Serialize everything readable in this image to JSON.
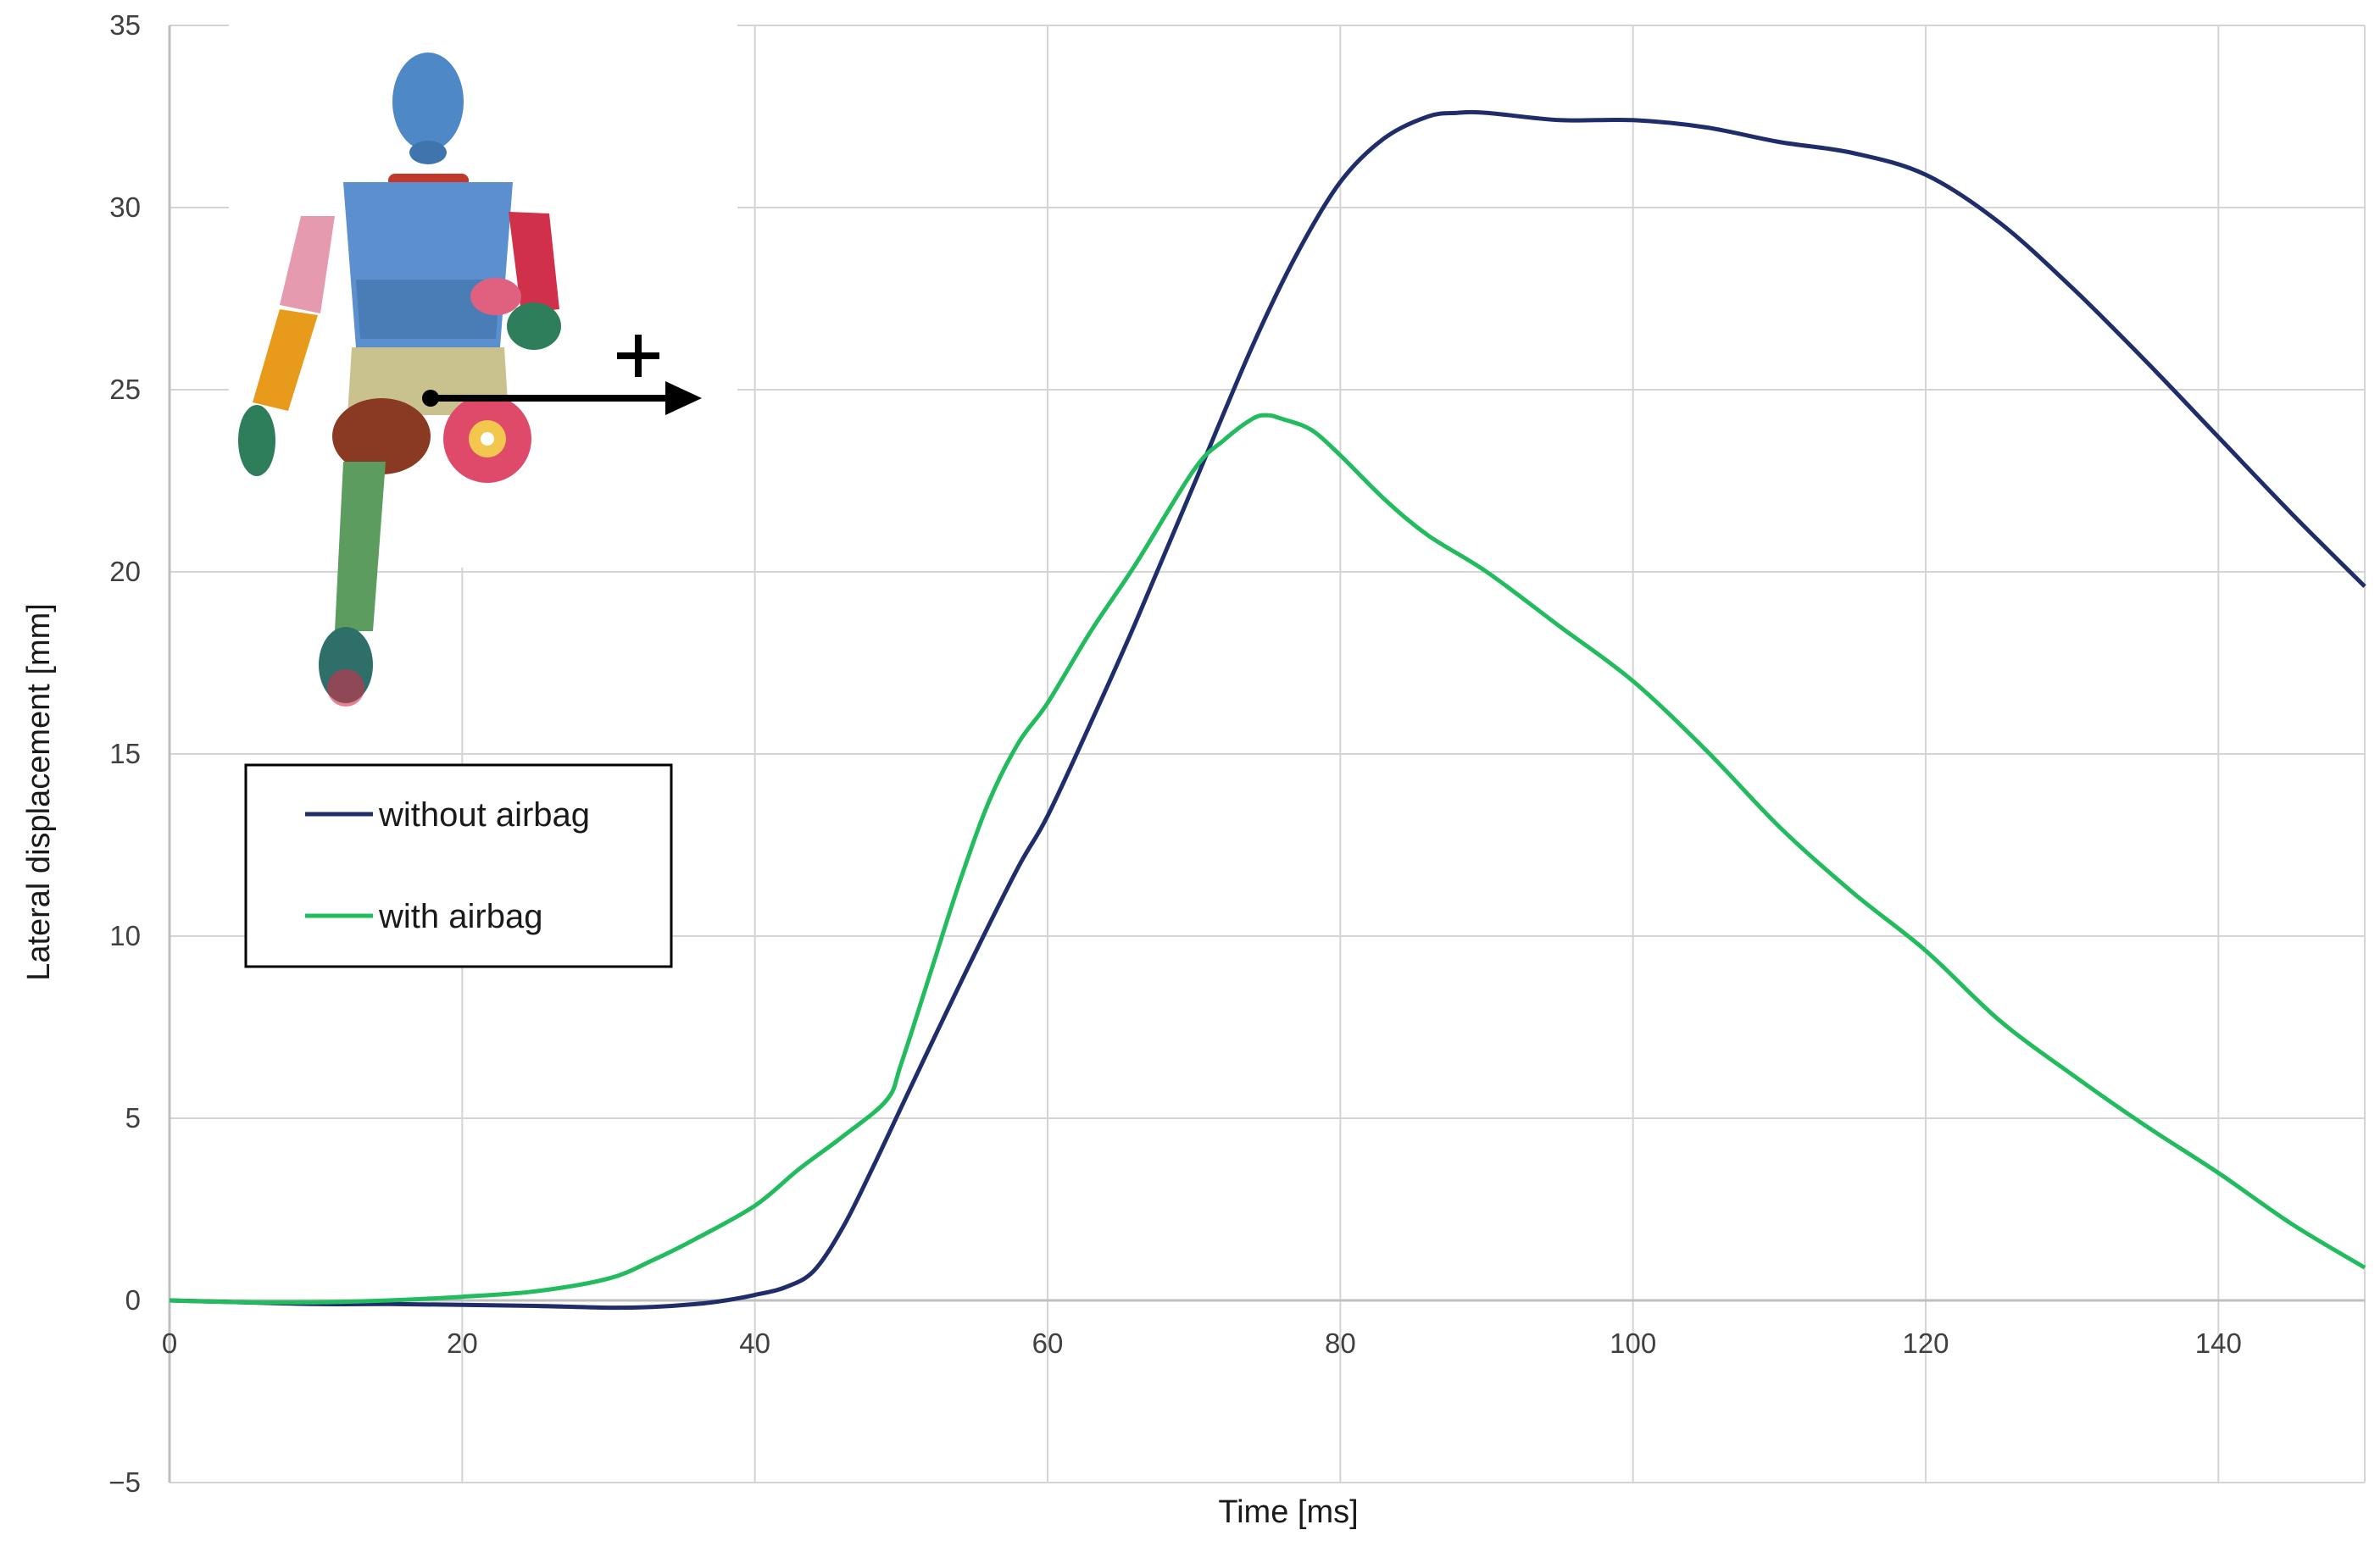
{
  "chart_data": {
    "type": "line",
    "xlabel": "Time [ms]",
    "ylabel": "Lateral displacement  [mm]",
    "xlim": [
      0,
      150
    ],
    "ylim": [
      -5,
      35
    ],
    "xticks": [
      0,
      20,
      40,
      60,
      80,
      100,
      120,
      140
    ],
    "yticks": [
      -5,
      0,
      5,
      10,
      15,
      20,
      25,
      30,
      35
    ],
    "grid": true,
    "legend_position": "left",
    "series": [
      {
        "name": "without airbag",
        "color": "#1f2d6b",
        "x": [
          0,
          5,
          10,
          15,
          20,
          25,
          30,
          33,
          36,
          38,
          40,
          42,
          44,
          46,
          48,
          50,
          52,
          55,
          58,
          60,
          63,
          66,
          70,
          74,
          77,
          80,
          83,
          86,
          88,
          90,
          95,
          100,
          105,
          110,
          115,
          120,
          125,
          130,
          135,
          140,
          145,
          150
        ],
        "values": [
          0,
          -0.05,
          -0.1,
          -0.1,
          -0.12,
          -0.15,
          -0.2,
          -0.18,
          -0.1,
          0,
          0.15,
          0.35,
          0.8,
          2.0,
          3.6,
          5.3,
          7.0,
          9.5,
          11.9,
          13.3,
          15.9,
          18.6,
          22.4,
          26.2,
          28.7,
          30.7,
          31.9,
          32.5,
          32.6,
          32.6,
          32.4,
          32.4,
          32.2,
          31.8,
          31.5,
          30.9,
          29.6,
          27.8,
          25.8,
          23.7,
          21.6,
          19.6
        ]
      },
      {
        "name": "with airbag",
        "color": "#22bb5e",
        "x": [
          0,
          5,
          10,
          15,
          20,
          25,
          30,
          33,
          36,
          40,
          43,
          46,
          49,
          50,
          52,
          54,
          56,
          58,
          60,
          63,
          66,
          70,
          72,
          74,
          75,
          76,
          78,
          80,
          83,
          86,
          90,
          95,
          100,
          105,
          110,
          115,
          120,
          125,
          130,
          135,
          140,
          145,
          150
        ],
        "values": [
          0,
          -0.05,
          -0.05,
          0.0,
          0.1,
          0.25,
          0.6,
          1.1,
          1.7,
          2.6,
          3.6,
          4.5,
          5.5,
          6.5,
          9.0,
          11.5,
          13.7,
          15.3,
          16.4,
          18.4,
          20.2,
          22.8,
          23.6,
          24.2,
          24.3,
          24.2,
          23.9,
          23.2,
          22.0,
          21.0,
          20.0,
          18.5,
          17.0,
          15.1,
          13.0,
          11.2,
          9.6,
          7.7,
          6.2,
          4.8,
          3.5,
          2.1,
          0.9
        ]
      }
    ]
  },
  "colors": {
    "grid": "#d4d4d4",
    "axis": "#bfbfbf",
    "legend_border": "#000000"
  }
}
